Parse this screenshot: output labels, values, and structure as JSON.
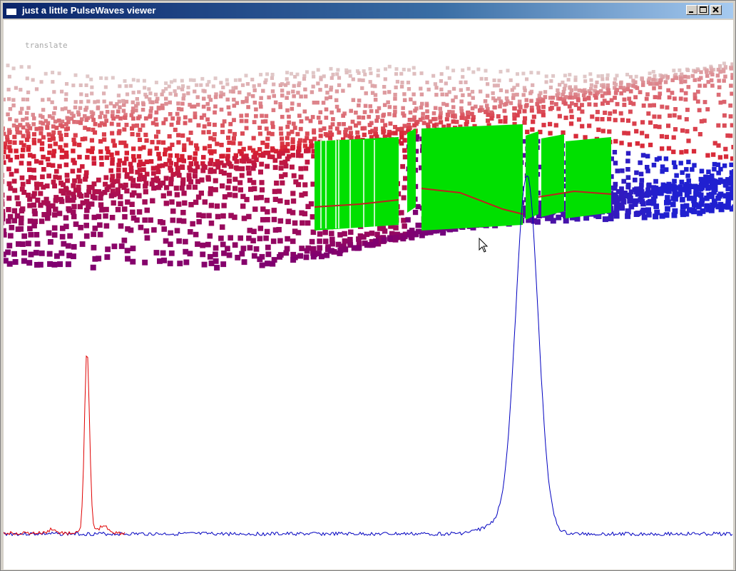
{
  "window": {
    "title": "just a little PulseWaves viewer",
    "icon": "app-window-icon",
    "controls": [
      "minimize-icon",
      "maximize-icon",
      "close-icon"
    ]
  },
  "viewer": {
    "mode_label": "translate",
    "colors": {
      "near_top": "#e0c8c8",
      "mid": "#d82030",
      "lower": "#800070",
      "far_right": "#2020d0",
      "selected_pulses": "#00e000",
      "selected_trace": "#c02020"
    },
    "waveforms": [
      {
        "name_icon": "outgoing-pulse",
        "color": "#e00000"
      },
      {
        "name_icon": "returning-waveform",
        "color": "#0000c0"
      }
    ]
  }
}
